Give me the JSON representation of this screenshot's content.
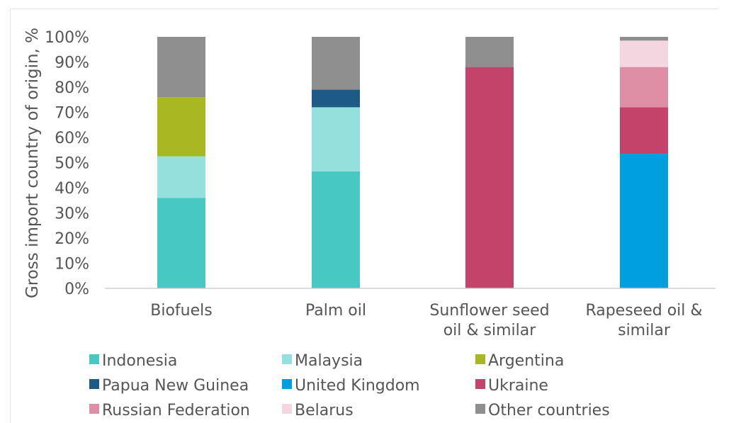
{
  "chart_data": {
    "type": "bar",
    "stacked": true,
    "ylabel": "Gross import country  of origin, %",
    "ylim": [
      0,
      100
    ],
    "yticks": [
      "0%",
      "10%",
      "20%",
      "30%",
      "40%",
      "50%",
      "60%",
      "70%",
      "80%",
      "90%",
      "100%"
    ],
    "categories": [
      "Biofuels",
      "Palm oil",
      "Sunflower seed oil & similar",
      "Rapeseed oil & similar"
    ],
    "category_lines": [
      [
        "Biofuels"
      ],
      [
        "Palm oil"
      ],
      [
        "Sunflower seed",
        "oil & similar"
      ],
      [
        "Rapeseed oil &",
        "similar"
      ]
    ],
    "series": [
      {
        "name": "Indonesia",
        "color": "#47c8c3",
        "values": [
          36,
          46.5,
          0,
          0
        ]
      },
      {
        "name": "Malaysia",
        "color": "#94e0dc",
        "values": [
          16.5,
          25.5,
          0,
          0
        ]
      },
      {
        "name": "Argentina",
        "color": "#a7b820",
        "values": [
          23.5,
          0,
          0,
          0
        ]
      },
      {
        "name": "Papua New Guinea",
        "color": "#1e5a86",
        "values": [
          0,
          7,
          0,
          0
        ]
      },
      {
        "name": "United Kingdom",
        "color": "#00a0e0",
        "values": [
          0,
          0,
          0,
          53.5
        ]
      },
      {
        "name": "Ukraine",
        "color": "#c4436b",
        "values": [
          0,
          0,
          88,
          18.5
        ]
      },
      {
        "name": "Russian Federation",
        "color": "#de8ea5",
        "values": [
          0,
          0,
          0,
          16
        ]
      },
      {
        "name": "Belarus",
        "color": "#f3d6df",
        "values": [
          0,
          0,
          0,
          10.5
        ]
      },
      {
        "name": "Other countries",
        "color": "#8f8f8f",
        "values": [
          24,
          21,
          12,
          1.5
        ]
      }
    ],
    "legend_position": "bottom",
    "grid": false
  }
}
